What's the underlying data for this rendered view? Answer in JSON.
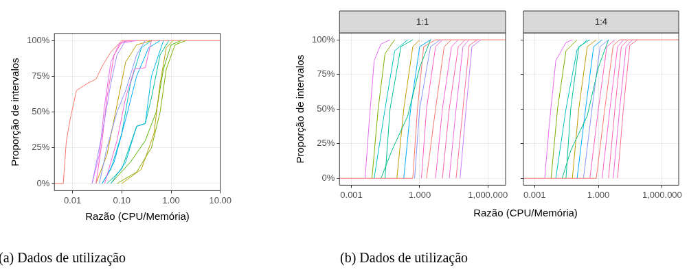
{
  "chart_data": [
    {
      "type": "line",
      "xlabel": "Razão (CPU/Memória)",
      "ylabel": "Proporção de intervalos",
      "annotations": [
        "(a) Dados de utilização"
      ],
      "log": "x",
      "grid": true,
      "legend": false,
      "marker": "none",
      "xlim": [
        0.0043,
        10
      ],
      "xticks": [
        0.01,
        {
          "value": 0.1,
          "label": "0.10"
        },
        {
          "value": 1,
          "label": "1.00"
        },
        {
          "value": 10,
          "label": "10.00"
        }
      ],
      "ylim": [
        -5,
        105
      ],
      "yticks": [
        {
          "value": 0,
          "label": "0%"
        },
        {
          "value": 25,
          "label": "25%"
        },
        {
          "value": 50,
          "label": "50%"
        },
        {
          "value": 75,
          "label": "75%"
        },
        {
          "value": 100,
          "label": "100%"
        }
      ],
      "series": [
        {
          "color": "#f8766d",
          "x": [
            0.0043,
            0.0065,
            0.0075,
            0.009,
            0.012,
            0.02,
            0.03,
            0.04,
            0.06,
            0.1,
            10
          ],
          "values": [
            0,
            0,
            30,
            45,
            65,
            70,
            73,
            82,
            92,
            100,
            100
          ]
        },
        {
          "color": "#e76bf3",
          "x": [
            0.025,
            0.035,
            0.045,
            0.06,
            0.09,
            0.2
          ],
          "values": [
            0,
            20,
            55,
            85,
            98,
            100
          ]
        },
        {
          "color": "#00bfc4",
          "x": [
            0.04,
            0.06,
            0.1,
            0.15,
            0.25,
            0.4
          ],
          "values": [
            0,
            10,
            35,
            70,
            95,
            100
          ]
        },
        {
          "color": "#7cae00",
          "x": [
            0.08,
            0.2,
            0.4,
            0.6,
            0.8,
            1.2,
            2
          ],
          "values": [
            0,
            8,
            25,
            50,
            80,
            97,
            100
          ]
        },
        {
          "color": "#c49a00",
          "x": [
            0.03,
            0.05,
            0.08,
            0.12,
            0.2,
            0.4
          ],
          "values": [
            0,
            20,
            55,
            85,
            97,
            100
          ]
        },
        {
          "color": "#00a9ff",
          "x": [
            0.04,
            0.07,
            0.12,
            0.2,
            0.35,
            0.6
          ],
          "values": [
            0,
            15,
            45,
            75,
            95,
            100
          ]
        },
        {
          "color": "#00c094",
          "x": [
            0.05,
            0.1,
            0.2,
            0.3,
            0.4,
            0.6,
            0.9
          ],
          "values": [
            0,
            10,
            40,
            42,
            60,
            90,
            100
          ]
        },
        {
          "color": "#ff61c3",
          "x": [
            0.03,
            0.04,
            0.05,
            0.07,
            0.1,
            0.15
          ],
          "values": [
            0,
            30,
            60,
            90,
            99,
            100
          ]
        },
        {
          "color": "#8494ff",
          "x": [
            0.035,
            0.05,
            0.08,
            0.12,
            0.2,
            0.3
          ],
          "values": [
            0,
            25,
            50,
            65,
            90,
            100
          ]
        },
        {
          "color": "#53b400",
          "x": [
            0.06,
            0.15,
            0.3,
            0.5,
            0.7,
            1,
            1.6
          ],
          "values": [
            0,
            15,
            30,
            50,
            80,
            97,
            100
          ]
        },
        {
          "color": "#a58aff",
          "x": [
            0.025,
            0.04,
            0.06,
            0.08,
            0.12
          ],
          "values": [
            0,
            35,
            70,
            90,
            100
          ]
        },
        {
          "color": "#fb61d7",
          "x": [
            0.045,
            0.08,
            0.12,
            0.18,
            0.3,
            0.4
          ],
          "values": [
            0,
            30,
            60,
            80,
            81,
            100
          ]
        },
        {
          "color": "#00b6eb",
          "x": [
            0.06,
            0.12,
            0.2,
            0.3,
            0.4,
            0.7
          ],
          "values": [
            0,
            15,
            40,
            42,
            75,
            100
          ]
        },
        {
          "color": "#b79f00",
          "x": [
            0.1,
            0.25,
            0.45,
            0.6,
            0.8,
            1.1
          ],
          "values": [
            0,
            10,
            35,
            70,
            95,
            100
          ]
        }
      ]
    },
    {
      "type": "line",
      "title": "1:1",
      "xlabel": "Razão (CPU/Memória)",
      "ylabel": "Proporção de intervalos",
      "annotations": [
        "(b) Dados de utilização"
      ],
      "log": "x",
      "grid": true,
      "legend": false,
      "marker": "none",
      "xlim": [
        0.0003,
        6000
      ],
      "xticks": [
        0.001,
        {
          "value": 1,
          "label": "1.000"
        },
        {
          "value": 1000,
          "label": "1,000.000"
        }
      ],
      "ylim": [
        -5,
        105
      ],
      "yticks": [
        {
          "value": 0,
          "label": "0%"
        },
        {
          "value": 25,
          "label": "25%"
        },
        {
          "value": 50,
          "label": "50%"
        },
        {
          "value": 75,
          "label": "75%"
        },
        {
          "value": 100,
          "label": "100%"
        }
      ],
      "series": [
        {
          "color": "#f8766d",
          "x": [
            0.0003,
            0.5,
            0.8,
            1.5,
            5,
            6000
          ],
          "values": [
            0,
            0,
            50,
            95,
            100,
            100
          ]
        },
        {
          "color": "#e76bf3",
          "x": [
            0.004,
            0.006,
            0.01,
            0.02,
            0.05
          ],
          "values": [
            0,
            40,
            85,
            97,
            100
          ]
        },
        {
          "color": "#7cae00",
          "x": [
            0.008,
            0.015,
            0.03,
            0.08
          ],
          "values": [
            0,
            50,
            90,
            100
          ]
        },
        {
          "color": "#00bfc4",
          "x": [
            0.01,
            0.03,
            0.08,
            0.3
          ],
          "values": [
            0,
            50,
            92,
            100
          ]
        },
        {
          "color": "#00c094",
          "x": [
            0.03,
            0.05,
            0.15,
            0.5
          ],
          "values": [
            0,
            50,
            95,
            100
          ]
        },
        {
          "color": "#c49a00",
          "x": [
            0.1,
            0.2,
            0.5,
            1
          ],
          "values": [
            0,
            50,
            95,
            100
          ]
        },
        {
          "color": "#00a9ff",
          "x": [
            0.2,
            0.4,
            1,
            3
          ],
          "values": [
            0,
            50,
            95,
            100
          ]
        },
        {
          "color": "#8494ff",
          "x": [
            0.6,
            1,
            3,
            8
          ],
          "values": [
            0,
            50,
            95,
            100
          ]
        },
        {
          "color": "#ff61c3",
          "x": [
            1.2,
            2,
            5,
            10
          ],
          "values": [
            0,
            50,
            95,
            100
          ]
        },
        {
          "color": "#f8766d",
          "x": [
            2,
            5,
            12,
            25
          ],
          "values": [
            0,
            50,
            95,
            100
          ]
        },
        {
          "color": "#fb61d7",
          "x": [
            5,
            10,
            25,
            50
          ],
          "values": [
            0,
            50,
            95,
            100
          ]
        },
        {
          "color": "#ff64b0",
          "x": [
            10,
            20,
            50,
            100
          ],
          "values": [
            0,
            50,
            95,
            100
          ]
        },
        {
          "color": "#f564e3",
          "x": [
            20,
            40,
            80,
            150
          ],
          "values": [
            0,
            50,
            95,
            100
          ]
        },
        {
          "color": "#ff6c91",
          "x": [
            40,
            80,
            150,
            350
          ],
          "values": [
            0,
            50,
            96,
            100
          ]
        },
        {
          "color": "#c77cff",
          "x": [
            60,
            110,
            200,
            500
          ],
          "values": [
            0,
            50,
            95,
            100
          ]
        },
        {
          "color": "#00bf7d",
          "x": [
            0.02,
            0.06,
            0.3,
            1,
            3
          ],
          "values": [
            0,
            20,
            45,
            80,
            100
          ]
        }
      ]
    },
    {
      "type": "line",
      "title": "1:4",
      "log": "x",
      "grid": true,
      "legend": false,
      "marker": "none",
      "tick_labels": "x",
      "xlim": [
        0.0003,
        6000
      ],
      "xticks": [
        0.001,
        {
          "value": 1,
          "label": "1.000"
        },
        {
          "value": 1000,
          "label": "1,000.000"
        }
      ],
      "ylim": [
        -5,
        105
      ],
      "yticks": [
        {
          "value": 0,
          "label": null
        },
        {
          "value": 25,
          "label": null
        },
        {
          "value": 50,
          "label": null
        },
        {
          "value": 75,
          "label": null
        },
        {
          "value": 100,
          "label": null
        }
      ],
      "series": [
        {
          "color": "#f8766d",
          "x": [
            0.0003,
            0.8,
            2,
            5,
            10,
            6000
          ],
          "values": [
            0,
            0,
            50,
            96,
            100,
            100
          ]
        },
        {
          "color": "#e76bf3",
          "x": [
            0.003,
            0.005,
            0.01,
            0.03,
            0.06
          ],
          "values": [
            0,
            40,
            85,
            98,
            100
          ]
        },
        {
          "color": "#7cae00",
          "x": [
            0.006,
            0.012,
            0.03,
            0.1
          ],
          "values": [
            0,
            50,
            92,
            100
          ]
        },
        {
          "color": "#00bfc4",
          "x": [
            0.01,
            0.03,
            0.1,
            0.3
          ],
          "values": [
            0,
            50,
            93,
            100
          ]
        },
        {
          "color": "#00c094",
          "x": [
            0.03,
            0.05,
            0.12,
            0.4
          ],
          "values": [
            0,
            50,
            95,
            100
          ]
        },
        {
          "color": "#c49a00",
          "x": [
            0.06,
            0.12,
            0.3,
            0.8
          ],
          "values": [
            0,
            50,
            95,
            100
          ]
        },
        {
          "color": "#00a9ff",
          "x": [
            0.1,
            0.25,
            0.6,
            1.5
          ],
          "values": [
            0,
            50,
            95,
            100
          ]
        },
        {
          "color": "#8494ff",
          "x": [
            0.2,
            0.5,
            1.2,
            3
          ],
          "values": [
            0,
            50,
            95,
            100
          ]
        },
        {
          "color": "#ff61c3",
          "x": [
            0.4,
            1,
            2.5,
            6
          ],
          "values": [
            0,
            50,
            95,
            100
          ]
        },
        {
          "color": "#fb61d7",
          "x": [
            1.5,
            3.5,
            8,
            15
          ],
          "values": [
            0,
            50,
            95,
            100
          ]
        },
        {
          "color": "#ff64b0",
          "x": [
            3,
            6,
            12,
            25
          ],
          "values": [
            0,
            50,
            95,
            100
          ]
        },
        {
          "color": "#f564e3",
          "x": [
            5,
            10,
            20,
            40
          ],
          "values": [
            0,
            50,
            95,
            100
          ]
        },
        {
          "color": "#ff6c91",
          "x": [
            8,
            15,
            30,
            70
          ],
          "values": [
            0,
            50,
            96,
            100
          ]
        },
        {
          "color": "#00bf7d",
          "x": [
            0.02,
            0.05,
            0.3,
            1,
            3
          ],
          "values": [
            0,
            20,
            45,
            80,
            100
          ]
        }
      ]
    }
  ]
}
